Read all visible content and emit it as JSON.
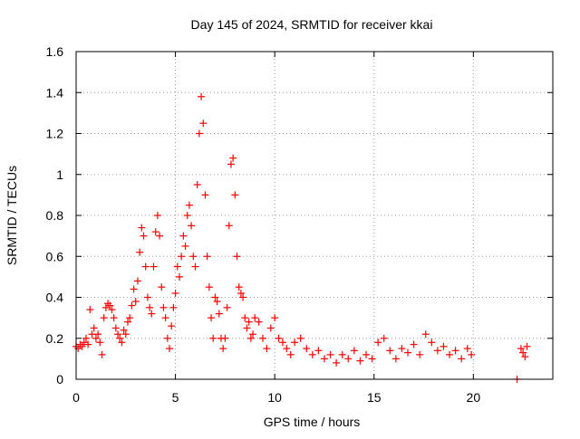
{
  "chart_data": {
    "type": "scatter",
    "title": "Day 145 of 2024, SRMTID for receiver kkai",
    "xlabel": "GPS time / hours",
    "ylabel": "SRMTID / TECUs",
    "xlim": [
      0,
      24
    ],
    "ylim": [
      0,
      1.6
    ],
    "xticks": [
      0,
      5,
      10,
      15,
      20
    ],
    "yticks": [
      0,
      0.2,
      0.4,
      0.6,
      0.8,
      1,
      1.2,
      1.4,
      1.6
    ],
    "ytick_labels": [
      "0",
      "0.2",
      "0.4",
      "0.6",
      "0.8",
      "1",
      "1.2",
      "1.4",
      "1.6"
    ],
    "grid": true,
    "marker": "plus",
    "marker_color": "#ff0000",
    "series": [
      {
        "name": "SRMTID",
        "x": [
          0.0,
          0.1,
          0.2,
          0.3,
          0.4,
          0.5,
          0.6,
          0.7,
          0.8,
          0.9,
          1.0,
          1.1,
          1.2,
          1.3,
          1.4,
          1.5,
          1.6,
          1.7,
          1.8,
          1.9,
          2.0,
          2.1,
          2.2,
          2.3,
          2.4,
          2.5,
          2.6,
          2.7,
          2.8,
          2.9,
          3.0,
          3.1,
          3.2,
          3.3,
          3.4,
          3.5,
          3.6,
          3.7,
          3.8,
          3.9,
          4.0,
          4.1,
          4.2,
          4.3,
          4.4,
          4.5,
          4.6,
          4.7,
          4.8,
          4.9,
          5.0,
          5.1,
          5.2,
          5.3,
          5.4,
          5.5,
          5.6,
          5.7,
          5.8,
          5.9,
          6.0,
          6.1,
          6.2,
          6.3,
          6.4,
          6.5,
          6.6,
          6.7,
          6.8,
          6.9,
          7.0,
          7.1,
          7.2,
          7.3,
          7.4,
          7.5,
          7.6,
          7.7,
          7.8,
          7.9,
          8.0,
          8.1,
          8.2,
          8.3,
          8.4,
          8.5,
          8.6,
          8.7,
          8.8,
          8.9,
          9.0,
          9.2,
          9.4,
          9.6,
          9.8,
          10.0,
          10.2,
          10.4,
          10.6,
          10.8,
          11.0,
          11.3,
          11.6,
          11.9,
          12.2,
          12.5,
          12.8,
          13.1,
          13.4,
          13.7,
          14.0,
          14.3,
          14.6,
          14.9,
          15.2,
          15.5,
          15.8,
          16.1,
          16.4,
          16.7,
          17.0,
          17.3,
          17.6,
          17.9,
          18.2,
          18.5,
          18.8,
          19.1,
          19.4,
          19.7,
          19.9,
          22.2,
          22.4,
          22.5,
          22.6,
          22.7
        ],
        "y": [
          0.16,
          0.15,
          0.17,
          0.16,
          0.18,
          0.2,
          0.17,
          0.34,
          0.22,
          0.25,
          0.2,
          0.22,
          0.18,
          0.12,
          0.3,
          0.35,
          0.37,
          0.36,
          0.34,
          0.3,
          0.25,
          0.22,
          0.2,
          0.18,
          0.24,
          0.22,
          0.28,
          0.3,
          0.36,
          0.44,
          0.38,
          0.48,
          0.62,
          0.74,
          0.7,
          0.55,
          0.4,
          0.35,
          0.32,
          0.55,
          0.72,
          0.8,
          0.7,
          0.45,
          0.35,
          0.3,
          0.2,
          0.15,
          0.26,
          0.35,
          0.42,
          0.55,
          0.5,
          0.6,
          0.7,
          0.65,
          0.8,
          0.85,
          0.75,
          0.6,
          0.55,
          0.95,
          1.2,
          1.38,
          1.25,
          0.9,
          0.6,
          0.45,
          0.3,
          0.2,
          0.4,
          0.38,
          0.32,
          0.2,
          0.15,
          0.2,
          0.35,
          0.75,
          1.05,
          1.08,
          0.9,
          0.6,
          0.45,
          0.42,
          0.4,
          0.3,
          0.25,
          0.28,
          0.2,
          0.22,
          0.3,
          0.28,
          0.2,
          0.15,
          0.25,
          0.3,
          0.2,
          0.18,
          0.15,
          0.12,
          0.18,
          0.2,
          0.15,
          0.12,
          0.14,
          0.1,
          0.12,
          0.08,
          0.12,
          0.1,
          0.14,
          0.09,
          0.12,
          0.1,
          0.18,
          0.2,
          0.14,
          0.1,
          0.15,
          0.13,
          0.17,
          0.12,
          0.22,
          0.18,
          0.14,
          0.16,
          0.12,
          0.14,
          0.1,
          0.15,
          0.12,
          0.0,
          0.15,
          0.13,
          0.11,
          0.16
        ]
      }
    ]
  }
}
